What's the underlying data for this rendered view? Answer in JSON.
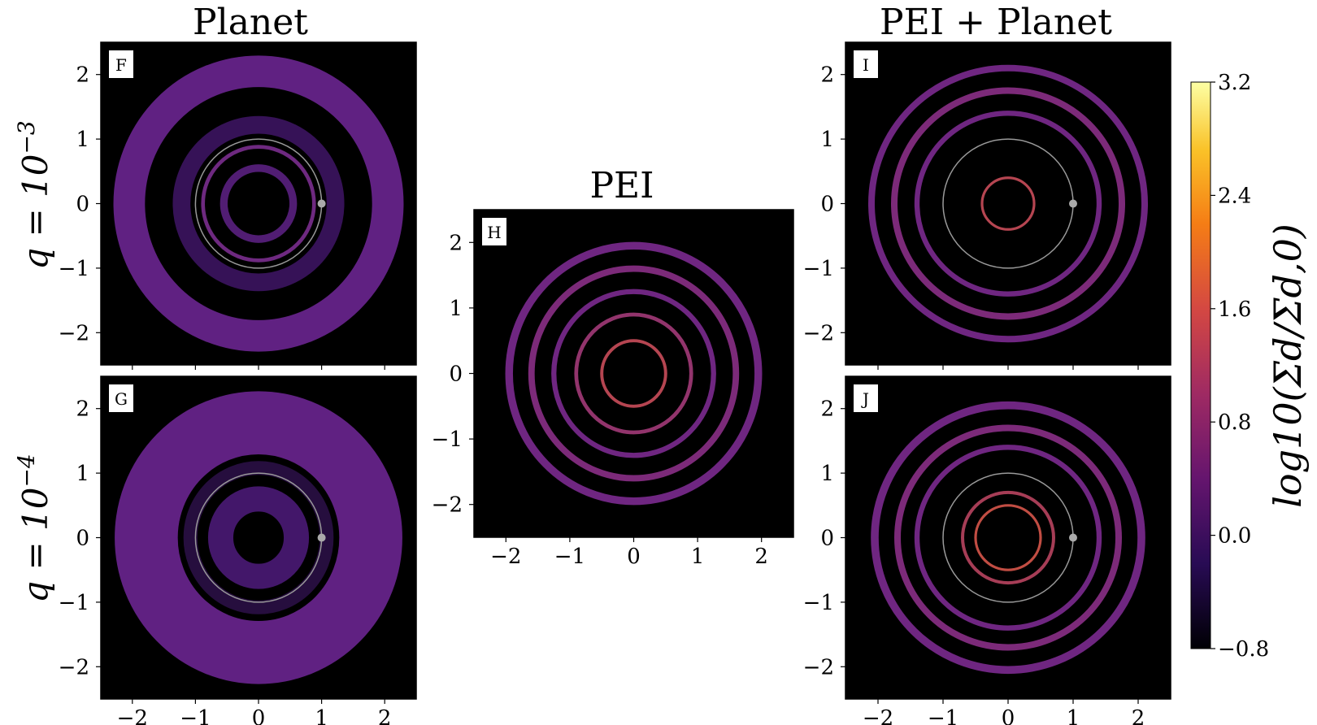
{
  "figure": {
    "col_titles": [
      "Planet",
      "PEI",
      "PEI + Planet"
    ],
    "row_labels": [
      {
        "base": "q = 10",
        "exp": "−3"
      },
      {
        "base": "q = 10",
        "exp": "−4"
      }
    ],
    "colorbar": {
      "label": "log10(Σd/Σd,0)",
      "ticks": [
        "3.2",
        "2.4",
        "1.6",
        "0.8",
        "0.0",
        "−0.8"
      ],
      "range": [
        -0.8,
        3.2
      ],
      "colors": [
        "#000004",
        "#280b54",
        "#65156e",
        "#9f2a63",
        "#d44842",
        "#f57d15",
        "#fac228",
        "#fcffa4"
      ]
    }
  },
  "chart_data": [
    {
      "type": "heatmap",
      "panel": "F",
      "title": "Planet",
      "xlim": [
        -2.5,
        2.5
      ],
      "ylim": [
        -2.5,
        2.5
      ],
      "xticks": [],
      "yticks": [
        "2",
        "1",
        "0",
        "−1",
        "−2"
      ],
      "planet": {
        "x": 1,
        "y": 0
      },
      "orbit_radius": 1,
      "rings": [
        {
          "r": 2.05,
          "w": 0.5,
          "color": "#6a2590"
        },
        {
          "r": 1.22,
          "w": 0.28,
          "color": "#3c1460"
        },
        {
          "r": 0.88,
          "w": 0.06,
          "color": "#7a2d8e"
        },
        {
          "r": 0.55,
          "w": 0.12,
          "color": "#5a2080"
        }
      ]
    },
    {
      "type": "heatmap",
      "panel": "G",
      "xlim": [
        -2.5,
        2.5
      ],
      "ylim": [
        -2.5,
        2.5
      ],
      "xticks": [
        "−2",
        "−1",
        "0",
        "1",
        "2"
      ],
      "yticks": [
        "2",
        "1",
        "0",
        "−1",
        "−2"
      ],
      "planet": {
        "x": 1,
        "y": 0
      },
      "orbit_radius": 1,
      "rings": [
        {
          "r": 1.78,
          "w": 1.0,
          "color": "#6a2590"
        },
        {
          "r": 1.08,
          "w": 0.22,
          "color": "#2a0f45"
        },
        {
          "r": 0.6,
          "w": 0.4,
          "color": "#4a1a75"
        }
      ]
    },
    {
      "type": "heatmap",
      "panel": "H",
      "title": "PEI",
      "xlim": [
        -2.5,
        2.5
      ],
      "ylim": [
        -2.5,
        2.5
      ],
      "xticks": [
        "−2",
        "−1",
        "0",
        "1",
        "2"
      ],
      "yticks": [
        "2",
        "1",
        "0",
        "−1",
        "−2"
      ],
      "rings": [
        {
          "r": 1.95,
          "w": 0.12,
          "color": "#7b2a8f"
        },
        {
          "r": 1.6,
          "w": 0.1,
          "color": "#8a2f86"
        },
        {
          "r": 1.25,
          "w": 0.08,
          "color": "#7b2a8f"
        },
        {
          "r": 0.9,
          "w": 0.06,
          "color": "#a23a78"
        },
        {
          "r": 0.5,
          "w": 0.05,
          "color": "#c94c5a"
        }
      ]
    },
    {
      "type": "heatmap",
      "panel": "I",
      "title": "PEI + Planet",
      "xlim": [
        -2.5,
        2.5
      ],
      "ylim": [
        -2.5,
        2.5
      ],
      "xticks": [],
      "yticks": [
        "2",
        "1",
        "0",
        "−1",
        "−2"
      ],
      "planet": {
        "x": 1,
        "y": 0
      },
      "orbit_radius": 1,
      "rings": [
        {
          "r": 2.1,
          "w": 0.1,
          "color": "#7b2a8f"
        },
        {
          "r": 1.75,
          "w": 0.1,
          "color": "#8a2f86"
        },
        {
          "r": 1.4,
          "w": 0.08,
          "color": "#7b2a8f"
        },
        {
          "r": 0.4,
          "w": 0.04,
          "color": "#c94c5a"
        }
      ]
    },
    {
      "type": "heatmap",
      "panel": "J",
      "xlim": [
        -2.5,
        2.5
      ],
      "ylim": [
        -2.5,
        2.5
      ],
      "xticks": [
        "−2",
        "−1",
        "0",
        "1",
        "2"
      ],
      "yticks": [
        "2",
        "1",
        "0",
        "−1",
        "−2"
      ],
      "planet": {
        "x": 1,
        "y": 0
      },
      "orbit_radius": 1,
      "rings": [
        {
          "r": 2.05,
          "w": 0.12,
          "color": "#7b2a8f"
        },
        {
          "r": 1.7,
          "w": 0.1,
          "color": "#8a2f86"
        },
        {
          "r": 1.4,
          "w": 0.08,
          "color": "#7b2a8f"
        },
        {
          "r": 0.7,
          "w": 0.05,
          "color": "#b8445f"
        },
        {
          "r": 0.5,
          "w": 0.04,
          "color": "#d6554a"
        }
      ]
    }
  ]
}
